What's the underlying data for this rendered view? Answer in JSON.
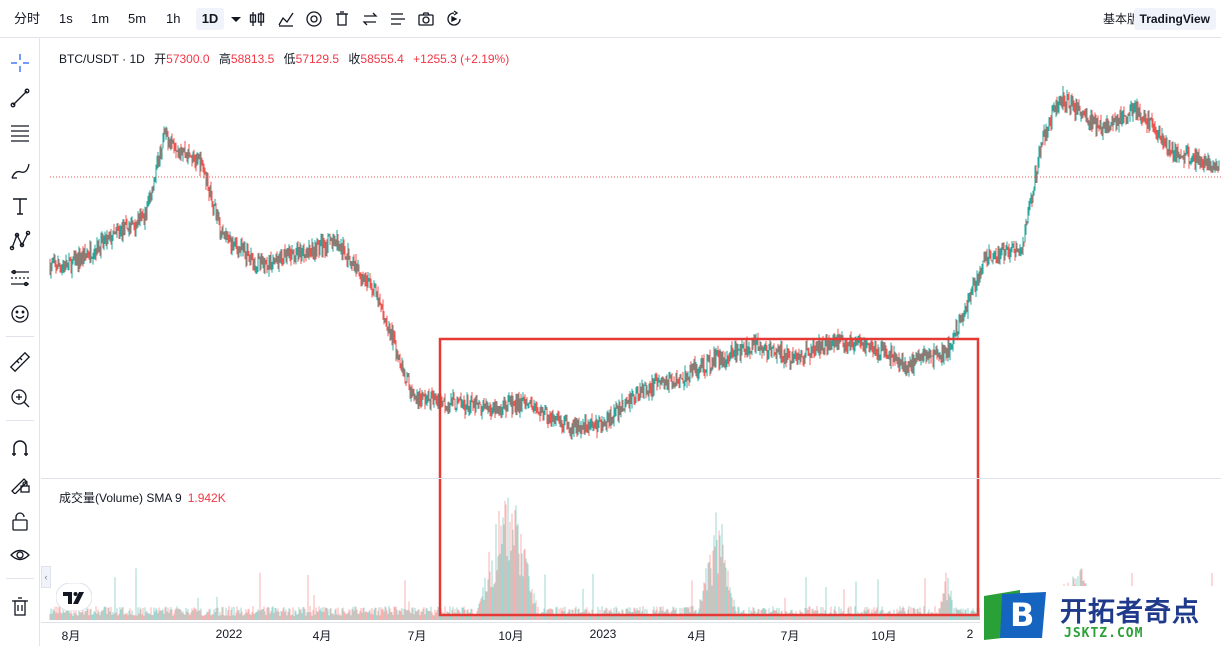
{
  "toolbar": {
    "intervals": [
      "分时",
      "1s",
      "1m",
      "5m",
      "1h",
      "1D"
    ],
    "active_interval": "1D",
    "basic_label": "基本版",
    "tv_label": "TradingView",
    "icons": [
      "chevron-down-icon",
      "candles-icon",
      "indicators-icon",
      "settings-icon",
      "trash-icon",
      "compare-icon",
      "lines-icon",
      "camera-icon",
      "replay-icon"
    ]
  },
  "left_tools": [
    "crosshair-icon",
    "trendline-icon",
    "fib-icon",
    "brush-icon",
    "text-icon",
    "pattern-icon",
    "forecast-icon",
    "emoji-icon",
    "ruler-icon",
    "zoom-icon",
    "magnet-icon",
    "lock-draw-icon",
    "unlock-icon",
    "eye-icon",
    "delete-icon"
  ],
  "legend": {
    "symbol": "BTC/USDT · 1D",
    "open_label": "开",
    "open": "57300.0",
    "high_label": "高",
    "high": "58813.5",
    "low_label": "低",
    "low": "57129.5",
    "close_label": "收",
    "close": "58555.4",
    "change": "+1255.3 (+2.19%)"
  },
  "volume_legend": {
    "name": "成交量(Volume) SMA 9",
    "value": "1.942K"
  },
  "colors": {
    "up": "#26a69a",
    "down": "#ef5350",
    "highlight_box": "#e53935",
    "price_line": "#ef5350"
  },
  "chart_data": {
    "type": "candlestick",
    "symbol": "BTC/USDT",
    "interval": "1D",
    "x_ticks": [
      "8月",
      "2022",
      "4月",
      "7月",
      "10月",
      "2023",
      "4月",
      "7月",
      "10月",
      "2"
    ],
    "price_path_approx": [
      [
        2021.6,
        42
      ],
      [
        2021.7,
        46
      ],
      [
        2021.8,
        50
      ],
      [
        2021.85,
        63
      ],
      [
        2021.95,
        58
      ],
      [
        2022.0,
        47
      ],
      [
        2022.1,
        42
      ],
      [
        2022.2,
        44
      ],
      [
        2022.3,
        46
      ],
      [
        2022.4,
        38
      ],
      [
        2022.45,
        30
      ],
      [
        2022.5,
        21
      ],
      [
        2022.6,
        20
      ],
      [
        2022.7,
        19
      ],
      [
        2022.8,
        20
      ],
      [
        2022.9,
        16
      ],
      [
        2023.0,
        16.5
      ],
      [
        2023.1,
        22
      ],
      [
        2023.2,
        24
      ],
      [
        2023.3,
        27
      ],
      [
        2023.4,
        29
      ],
      [
        2023.5,
        27
      ],
      [
        2023.6,
        30
      ],
      [
        2023.7,
        29
      ],
      [
        2023.8,
        26
      ],
      [
        2023.9,
        28
      ],
      [
        2023.95,
        35
      ],
      [
        2024.0,
        43
      ],
      [
        2024.1,
        45
      ],
      [
        2024.15,
        62
      ],
      [
        2024.2,
        69
      ],
      [
        2024.3,
        64
      ],
      [
        2024.4,
        67
      ],
      [
        2024.5,
        60
      ],
      [
        2024.6,
        58.5
      ]
    ],
    "last_close": 58555.4,
    "volume_spikes_approx": [
      [
        2022.75,
        "max"
      ],
      [
        2023.3,
        "high"
      ],
      [
        2023.9,
        "medium"
      ]
    ],
    "highlight_range": [
      "2022-07",
      "2023-10"
    ]
  }
}
